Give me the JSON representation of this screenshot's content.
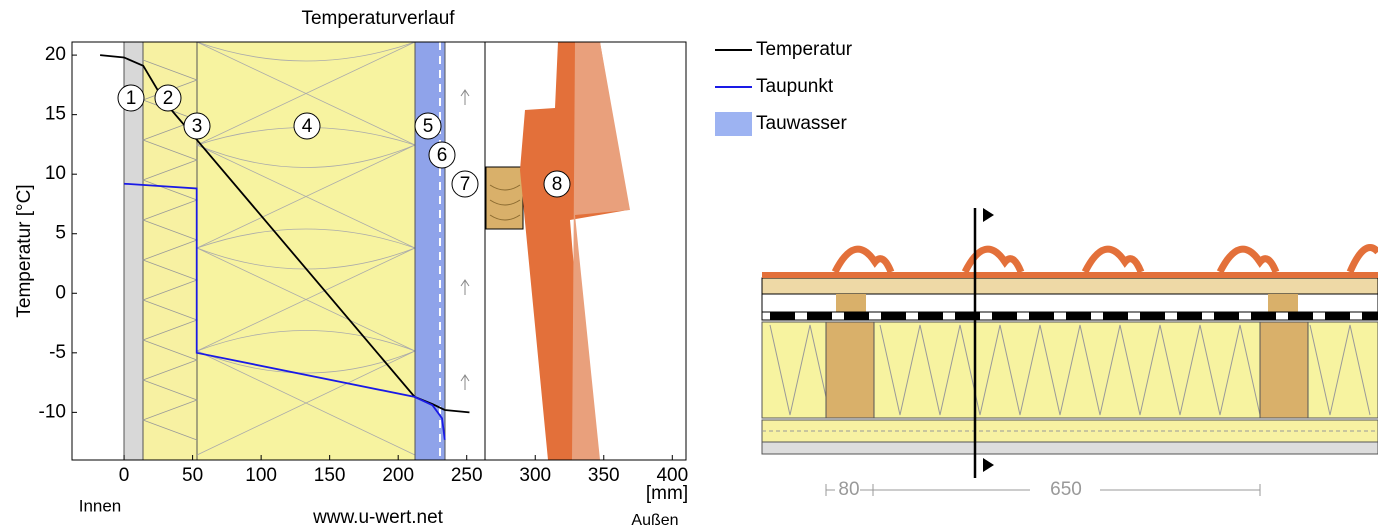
{
  "chart_data": {
    "type": "line",
    "title": "Temperaturverlauf",
    "x_label": "[mm]",
    "y_label": "Temperatur [°C]",
    "xlim": [
      -38,
      410
    ],
    "ylim": [
      -14,
      21.1
    ],
    "xticks": [
      0,
      50,
      100,
      150,
      200,
      250,
      300,
      350,
      400
    ],
    "yticks": [
      -10,
      -5,
      0,
      5,
      10,
      15,
      20
    ],
    "series": [
      {
        "name": "Temperatur",
        "color": "#000000",
        "x": [
          -17.5,
          0,
          14,
          30,
          53,
          212,
          225,
          234,
          252
        ],
        "values": [
          20,
          19.8,
          19.1,
          16,
          12.9,
          -8.7,
          -9.3,
          -9.8,
          -10.0
        ]
      },
      {
        "name": "Taupunkt",
        "color": "#1a1ae6",
        "x": [
          0,
          53,
          53,
          212,
          225,
          232,
          234
        ],
        "values": [
          9.2,
          8.8,
          -5.0,
          -8.7,
          -9.4,
          -10.5,
          -12.3
        ]
      }
    ],
    "condensate": {
      "name": "Tauwasser",
      "color": "#9db3f2"
    },
    "layer_labels": [
      "1",
      "2",
      "3",
      "4",
      "5",
      "6",
      "7",
      "8"
    ],
    "inside_label": "Innen",
    "outside_label": "Außen",
    "source": "www.u-wert.net",
    "dimensions": [
      "80",
      "650"
    ]
  }
}
